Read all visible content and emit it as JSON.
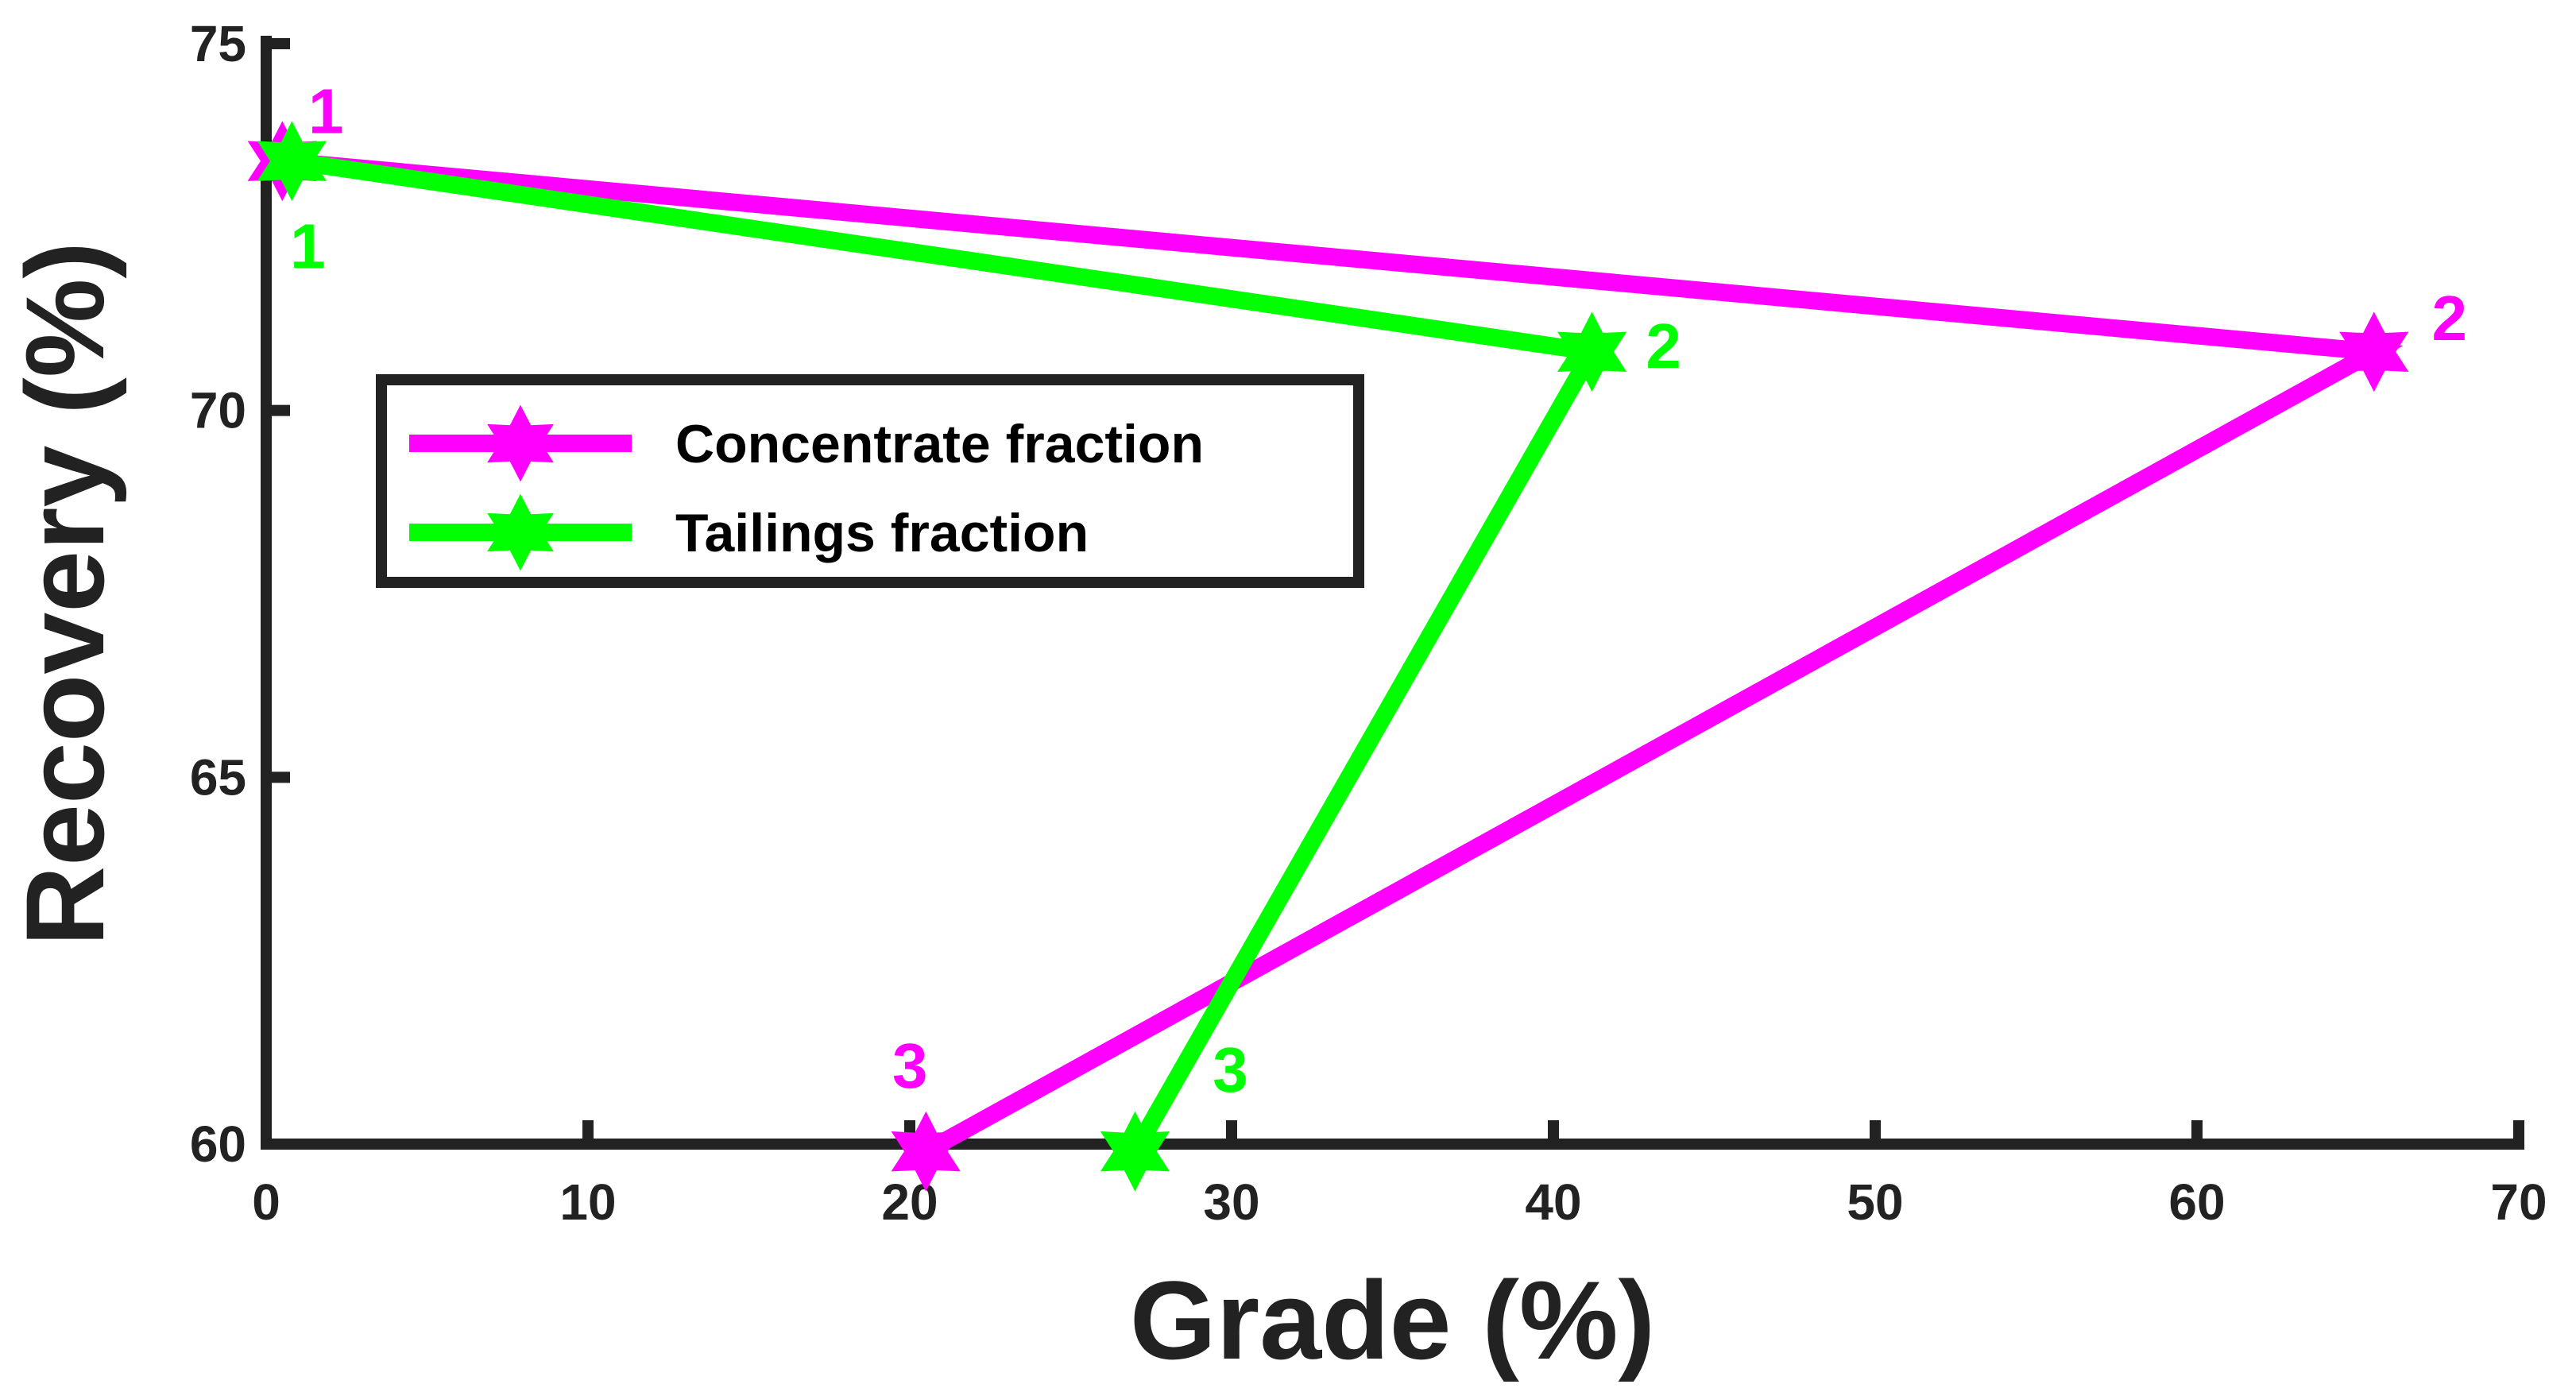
{
  "chart_data": {
    "type": "line",
    "title": "",
    "xlabel": "Grade (%)",
    "ylabel": "Recovery (%)",
    "xlim": [
      0,
      70
    ],
    "ylim": [
      60,
      75
    ],
    "xticks": [
      0,
      10,
      20,
      30,
      40,
      50,
      60,
      70
    ],
    "yticks": [
      60,
      65,
      70,
      75
    ],
    "grid": false,
    "legend_position": "upper-left",
    "marker": "hexagram-star",
    "series": [
      {
        "name": "Concentrate fraction",
        "color": "#ff00ff",
        "x": [
          0.5,
          65.5,
          20.5
        ],
        "y": [
          73.4,
          70.8,
          59.9
        ],
        "point_labels": [
          "1",
          "2",
          "3"
        ]
      },
      {
        "name": "Tailings fraction",
        "color": "#00ff00",
        "x": [
          0.8,
          41.2,
          27.0
        ],
        "y": [
          73.4,
          70.8,
          59.9
        ],
        "point_labels": [
          "1",
          "2",
          "3"
        ]
      }
    ]
  }
}
